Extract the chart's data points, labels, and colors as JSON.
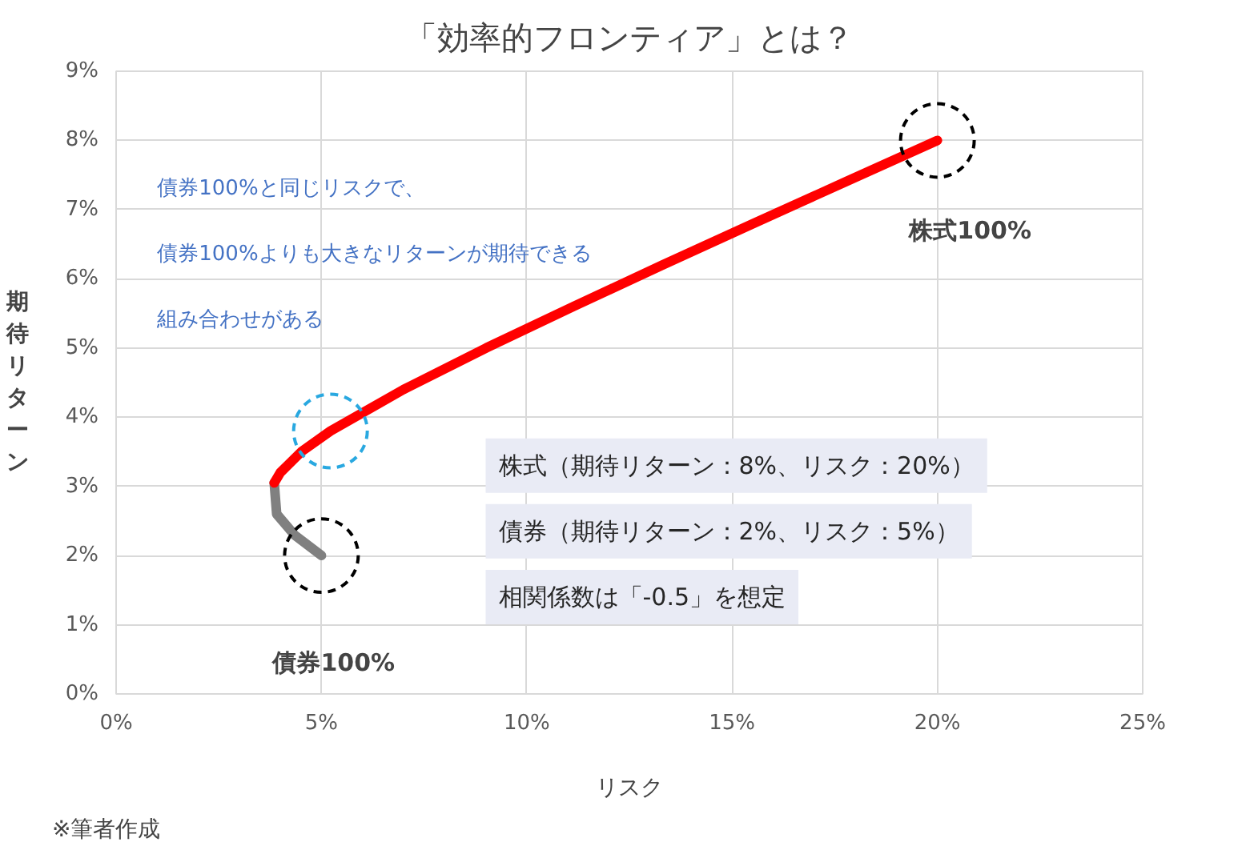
{
  "chart_data": {
    "type": "line",
    "title": "「効率的フロンティア」とは？",
    "xlabel": "リスク",
    "ylabel": "期待リターン",
    "xlim": [
      0,
      25
    ],
    "ylim": [
      0,
      9
    ],
    "xticks": [
      {
        "value": 0,
        "label": "0%"
      },
      {
        "value": 5,
        "label": "5%"
      },
      {
        "value": 10,
        "label": "10%"
      },
      {
        "value": 15,
        "label": "15%"
      },
      {
        "value": 20,
        "label": "20%"
      },
      {
        "value": 25,
        "label": "25%"
      }
    ],
    "yticks": [
      {
        "value": 0,
        "label": "0%"
      },
      {
        "value": 1,
        "label": "1%"
      },
      {
        "value": 2,
        "label": "2%"
      },
      {
        "value": 3,
        "label": "3%"
      },
      {
        "value": 4,
        "label": "4%"
      },
      {
        "value": 5,
        "label": "5%"
      },
      {
        "value": 6,
        "label": "6%"
      },
      {
        "value": 7,
        "label": "7%"
      },
      {
        "value": 8,
        "label": "8%"
      },
      {
        "value": 9,
        "label": "9%"
      }
    ],
    "grid": true,
    "line_style": "solid",
    "series": [
      {
        "color": "#808080",
        "x": [
          5.0,
          4.34,
          3.91,
          3.85
        ],
        "values": [
          2.0,
          2.3,
          2.6,
          3.05
        ]
      },
      {
        "color": "#ff0000",
        "x": [
          3.85,
          4.0,
          4.51,
          5.22,
          7.0,
          9.01,
          11.14,
          13.31,
          15.52,
          17.76,
          20.0
        ],
        "values": [
          3.05,
          3.2,
          3.5,
          3.8,
          4.4,
          5.0,
          5.6,
          6.2,
          6.8,
          7.4,
          8.0
        ]
      }
    ],
    "annotations": [
      "株式100%",
      "債券100%",
      "債券100%と同じリスクで、",
      "債券100%よりも大きなリターンが期待できる",
      "組み合わせがある",
      "株式（期待リターン：8%、リスク：20%）",
      "債券（期待リターン：2%、リスク：5%）",
      "相関係数は「-0.5」を想定",
      "※筆者作成"
    ]
  }
}
